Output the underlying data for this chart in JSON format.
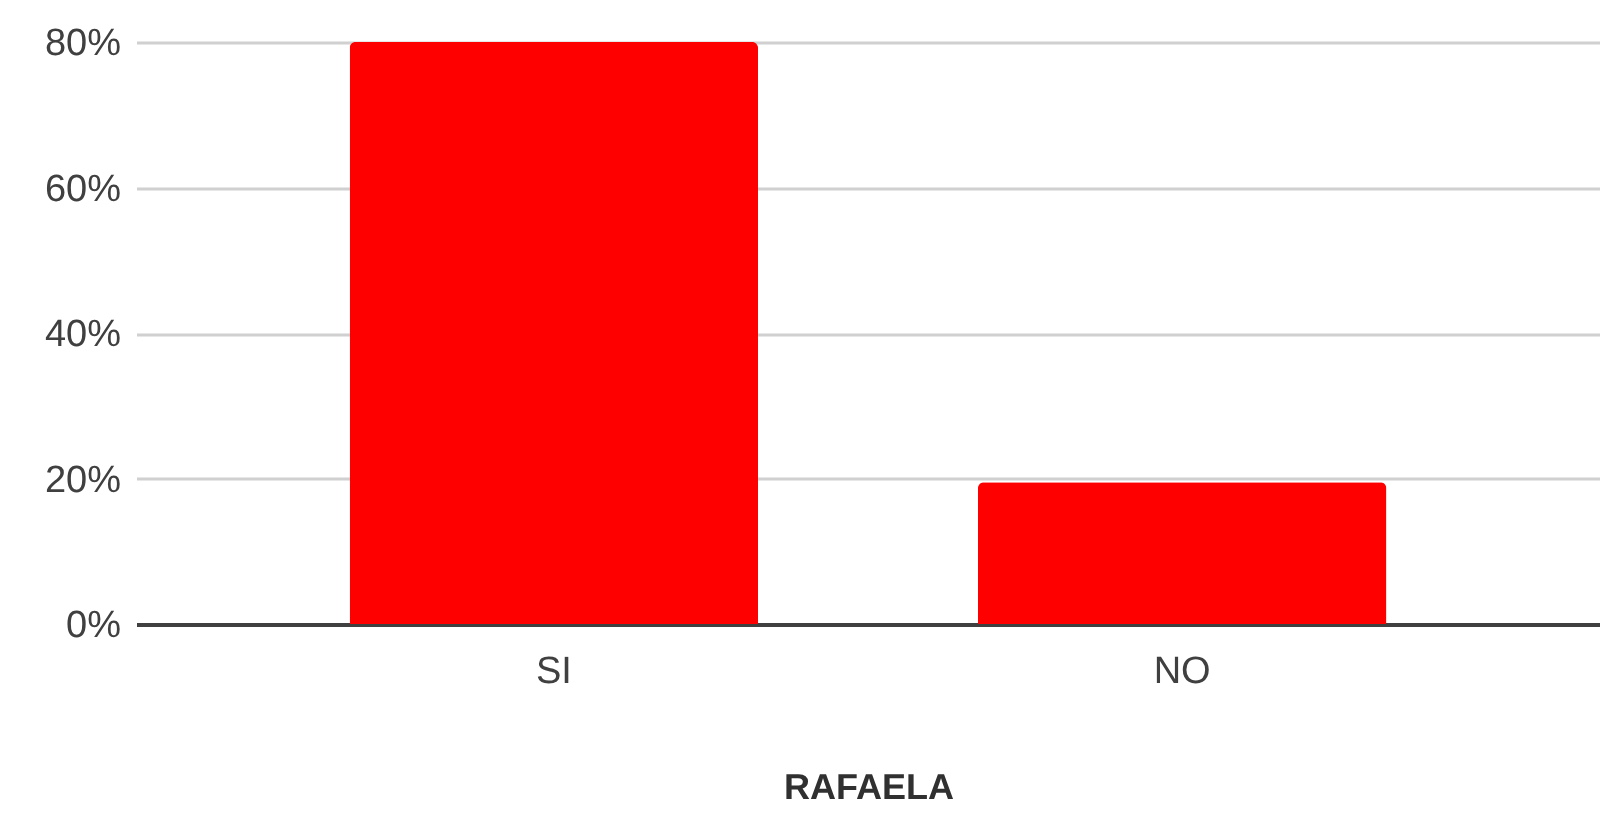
{
  "chart_data": {
    "type": "bar",
    "xlabel": "RAFAELA",
    "categories": [
      "SI",
      "NO"
    ],
    "values": [
      80,
      19.5
    ],
    "color": "#ff0000",
    "ylim": [
      0,
      80
    ],
    "yticks": [
      {
        "value": 0,
        "label": "0%"
      },
      {
        "value": 20,
        "label": "20%"
      },
      {
        "value": 40,
        "label": "40%"
      },
      {
        "value": 60,
        "label": "60%"
      },
      {
        "value": 80,
        "label": "80%"
      }
    ],
    "grid": true
  }
}
